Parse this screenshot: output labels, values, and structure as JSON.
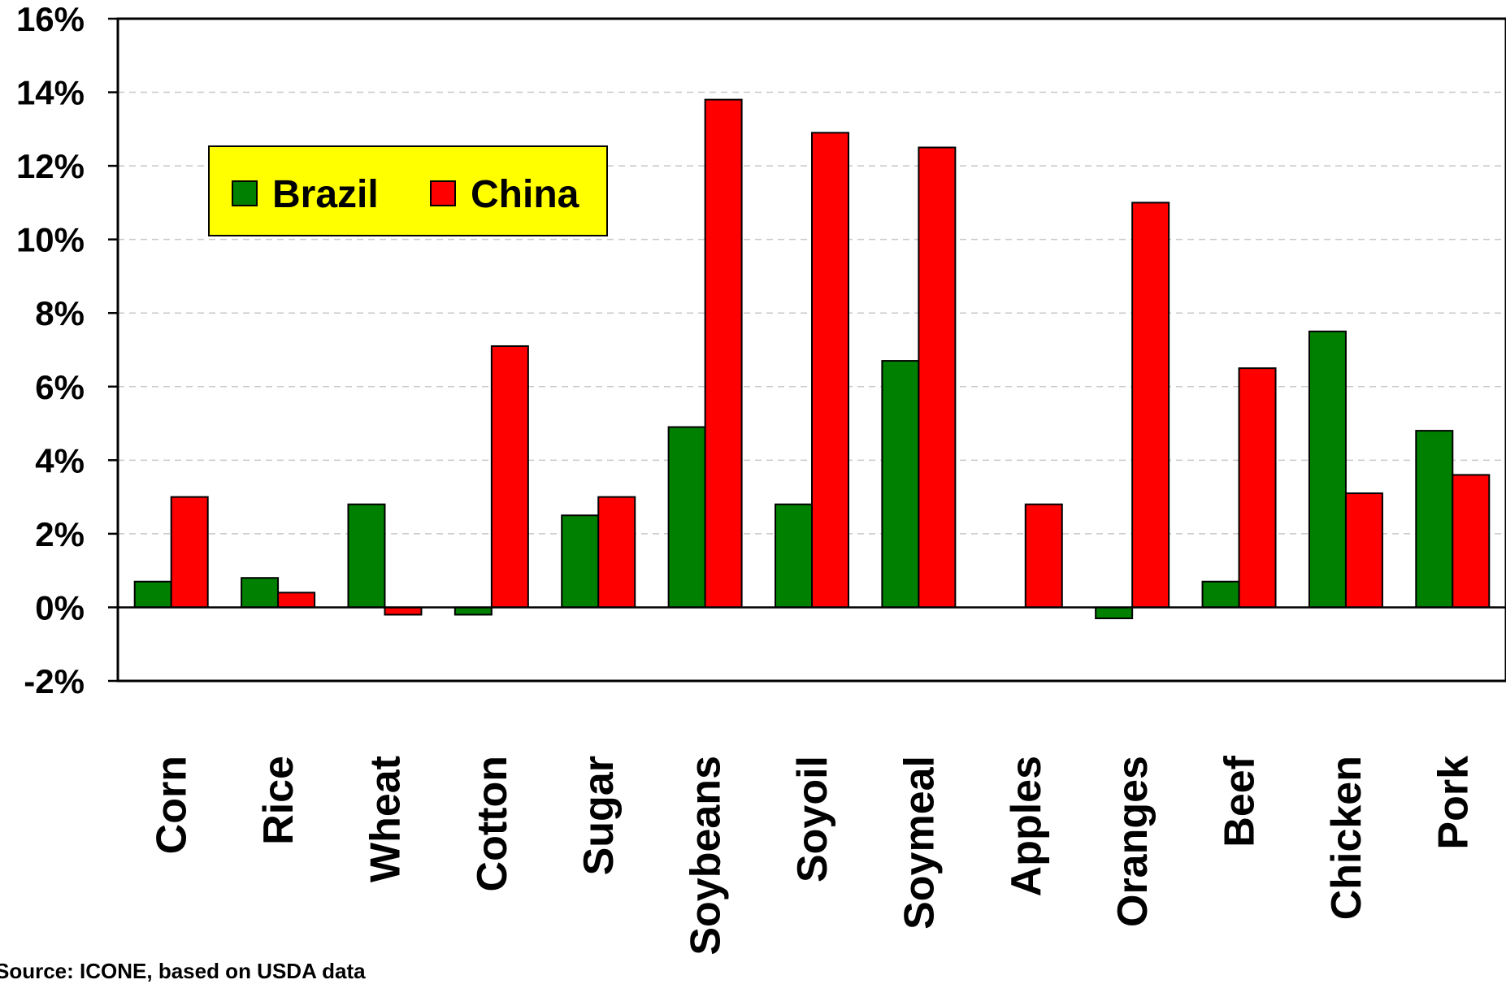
{
  "source_note": "Source: ICONE, based on USDA data",
  "chart_data": {
    "type": "bar",
    "title": "",
    "xlabel": "",
    "ylabel": "",
    "ylim": [
      -2,
      16
    ],
    "y_ticks": [
      -2,
      0,
      2,
      4,
      6,
      8,
      10,
      12,
      14,
      16
    ],
    "y_tick_labels": [
      "-2%",
      "0%",
      "2%",
      "4%",
      "6%",
      "8%",
      "10%",
      "12%",
      "14%",
      "16%"
    ],
    "grid": "horizontal dashed",
    "legend_position": "top-left",
    "categories": [
      "Corn",
      "Rice",
      "Wheat",
      "Cotton",
      "Sugar",
      "Soybeans",
      "Soyoil",
      "Soymeal",
      "Apples",
      "Oranges",
      "Beef",
      "Chicken",
      "Pork"
    ],
    "series": [
      {
        "name": "Brazil",
        "color": "#008000",
        "values": [
          0.7,
          0.8,
          2.8,
          -0.2,
          2.5,
          4.9,
          2.8,
          6.7,
          0.0,
          -0.3,
          0.7,
          7.5,
          4.8
        ]
      },
      {
        "name": "China",
        "color": "#ff0000",
        "values": [
          3.0,
          0.4,
          -0.2,
          7.1,
          3.0,
          13.8,
          12.9,
          12.5,
          2.8,
          11.0,
          6.5,
          3.1,
          3.6
        ]
      }
    ]
  }
}
